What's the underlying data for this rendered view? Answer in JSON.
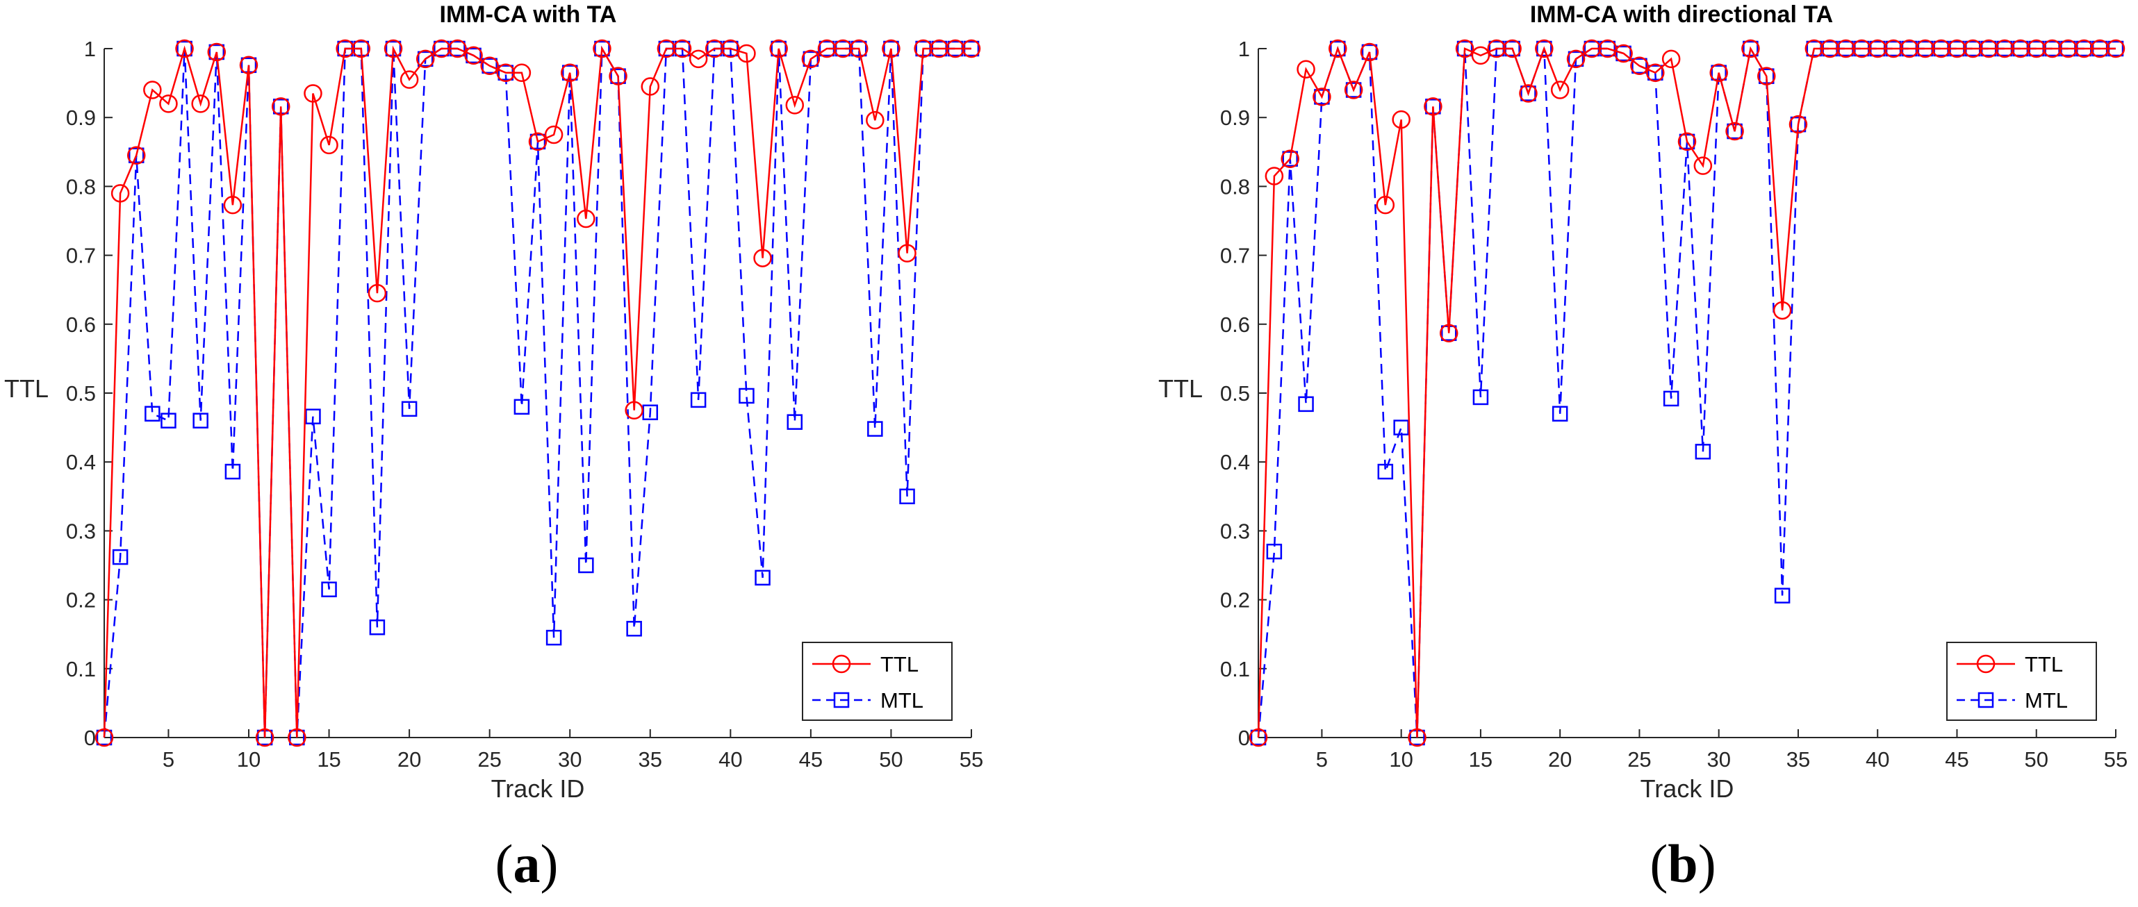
{
  "colors": {
    "ttl": "#ff0000",
    "mtl": "#0000ff",
    "axis": "#262626"
  },
  "chart_data": [
    {
      "type": "line",
      "panel_label": "a",
      "title": "IMM-CA with TA",
      "xlabel": "Track ID",
      "ylabel": "TTL",
      "xlim": [
        1,
        55
      ],
      "ylim": [
        0,
        1
      ],
      "xticks": [
        5,
        10,
        15,
        20,
        25,
        30,
        35,
        40,
        45,
        50,
        55
      ],
      "yticks": [
        0,
        0.1,
        0.2,
        0.3,
        0.4,
        0.5,
        0.6,
        0.7,
        0.8,
        0.9,
        1
      ],
      "ytick_labels": [
        "0",
        "0.1",
        "0.2",
        "0.3",
        "0.4",
        "0.5",
        "0.6",
        "0.7",
        "0.8",
        "0.9",
        "1"
      ],
      "legend_position": "bottom-right",
      "x": [
        1,
        2,
        3,
        4,
        5,
        6,
        7,
        8,
        9,
        10,
        11,
        12,
        13,
        14,
        15,
        16,
        17,
        18,
        19,
        20,
        21,
        22,
        23,
        24,
        25,
        26,
        27,
        28,
        29,
        30,
        31,
        32,
        33,
        34,
        35,
        36,
        37,
        38,
        39,
        40,
        41,
        42,
        43,
        44,
        45,
        46,
        47,
        48,
        49,
        50,
        51,
        52,
        53,
        54,
        55
      ],
      "series": [
        {
          "name": "TTL",
          "style": "solid",
          "marker": "circle",
          "values": [
            0,
            0.79,
            0.845,
            0.94,
            0.92,
            1,
            0.92,
            0.995,
            0.773,
            0.976,
            0,
            0.916,
            0,
            0.935,
            0.86,
            1,
            1,
            0.645,
            1,
            0.955,
            0.985,
            1,
            1,
            0.99,
            0.975,
            0.965,
            0.965,
            0.865,
            0.875,
            0.965,
            0.753,
            1,
            0.96,
            0.475,
            0.945,
            1,
            1,
            0.985,
            1,
            1,
            0.993,
            0.696,
            1,
            0.918,
            0.985,
            1,
            1,
            1,
            0.896,
            1,
            0.703,
            1,
            1,
            1,
            1
          ]
        },
        {
          "name": "MTL",
          "style": "dashed",
          "marker": "square",
          "values": [
            0,
            0.262,
            0.845,
            0.47,
            0.46,
            1,
            0.46,
            0.995,
            0.386,
            0.976,
            0,
            0.916,
            0,
            0.466,
            0.215,
            1,
            1,
            0.16,
            1,
            0.477,
            0.985,
            1,
            1,
            0.99,
            0.975,
            0.965,
            0.48,
            0.865,
            0.145,
            0.965,
            0.25,
            1,
            0.96,
            0.158,
            0.472,
            1,
            1,
            0.49,
            1,
            1,
            0.496,
            0.232,
            1,
            0.458,
            0.985,
            1,
            1,
            1,
            0.448,
            1,
            0.35,
            1,
            1,
            1,
            1
          ]
        }
      ]
    },
    {
      "type": "line",
      "panel_label": "b",
      "title": "IMM-CA with directional TA",
      "xlabel": "Track ID",
      "ylabel": "TTL",
      "xlim": [
        1,
        55
      ],
      "ylim": [
        0,
        1
      ],
      "xticks": [
        5,
        10,
        15,
        20,
        25,
        30,
        35,
        40,
        45,
        50,
        55
      ],
      "yticks": [
        0,
        0.1,
        0.2,
        0.3,
        0.4,
        0.5,
        0.6,
        0.7,
        0.8,
        0.9,
        1
      ],
      "ytick_labels": [
        "0",
        "0.1",
        "0.2",
        "0.3",
        "0.4",
        "0.5",
        "0.6",
        "0.7",
        "0.8",
        "0.9",
        "1"
      ],
      "legend_position": "bottom-right",
      "x": [
        1,
        2,
        3,
        4,
        5,
        6,
        7,
        8,
        9,
        10,
        11,
        12,
        13,
        14,
        15,
        16,
        17,
        18,
        19,
        20,
        21,
        22,
        23,
        24,
        25,
        26,
        27,
        28,
        29,
        30,
        31,
        32,
        33,
        34,
        35,
        36,
        37,
        38,
        39,
        40,
        41,
        42,
        43,
        44,
        45,
        46,
        47,
        48,
        49,
        50,
        51,
        52,
        53,
        54,
        55
      ],
      "series": [
        {
          "name": "TTL",
          "style": "solid",
          "marker": "circle",
          "values": [
            0,
            0.815,
            0.84,
            0.97,
            0.93,
            1,
            0.94,
            0.995,
            0.773,
            0.897,
            0,
            0.916,
            0.587,
            1,
            0.99,
            1,
            1,
            0.935,
            1,
            0.94,
            0.985,
            1,
            1,
            0.993,
            0.975,
            0.965,
            0.985,
            0.865,
            0.83,
            0.965,
            0.88,
            1,
            0.96,
            0.62,
            0.89,
            1,
            1,
            1,
            1,
            1,
            1,
            1,
            1,
            1,
            1,
            1,
            1,
            1,
            1,
            1,
            1,
            1,
            1,
            1,
            1
          ]
        },
        {
          "name": "MTL",
          "style": "dashed",
          "marker": "square",
          "values": [
            0,
            0.27,
            0.84,
            0.484,
            0.93,
            1,
            0.94,
            0.995,
            0.386,
            0.45,
            0,
            0.916,
            0.587,
            1,
            0.494,
            1,
            1,
            0.935,
            1,
            0.47,
            0.985,
            1,
            1,
            0.993,
            0.975,
            0.965,
            0.492,
            0.865,
            0.415,
            0.965,
            0.88,
            1,
            0.96,
            0.206,
            0.89,
            1,
            1,
            1,
            1,
            1,
            1,
            1,
            1,
            1,
            1,
            1,
            1,
            1,
            1,
            1,
            1,
            1,
            1,
            1,
            1
          ]
        }
      ]
    }
  ]
}
